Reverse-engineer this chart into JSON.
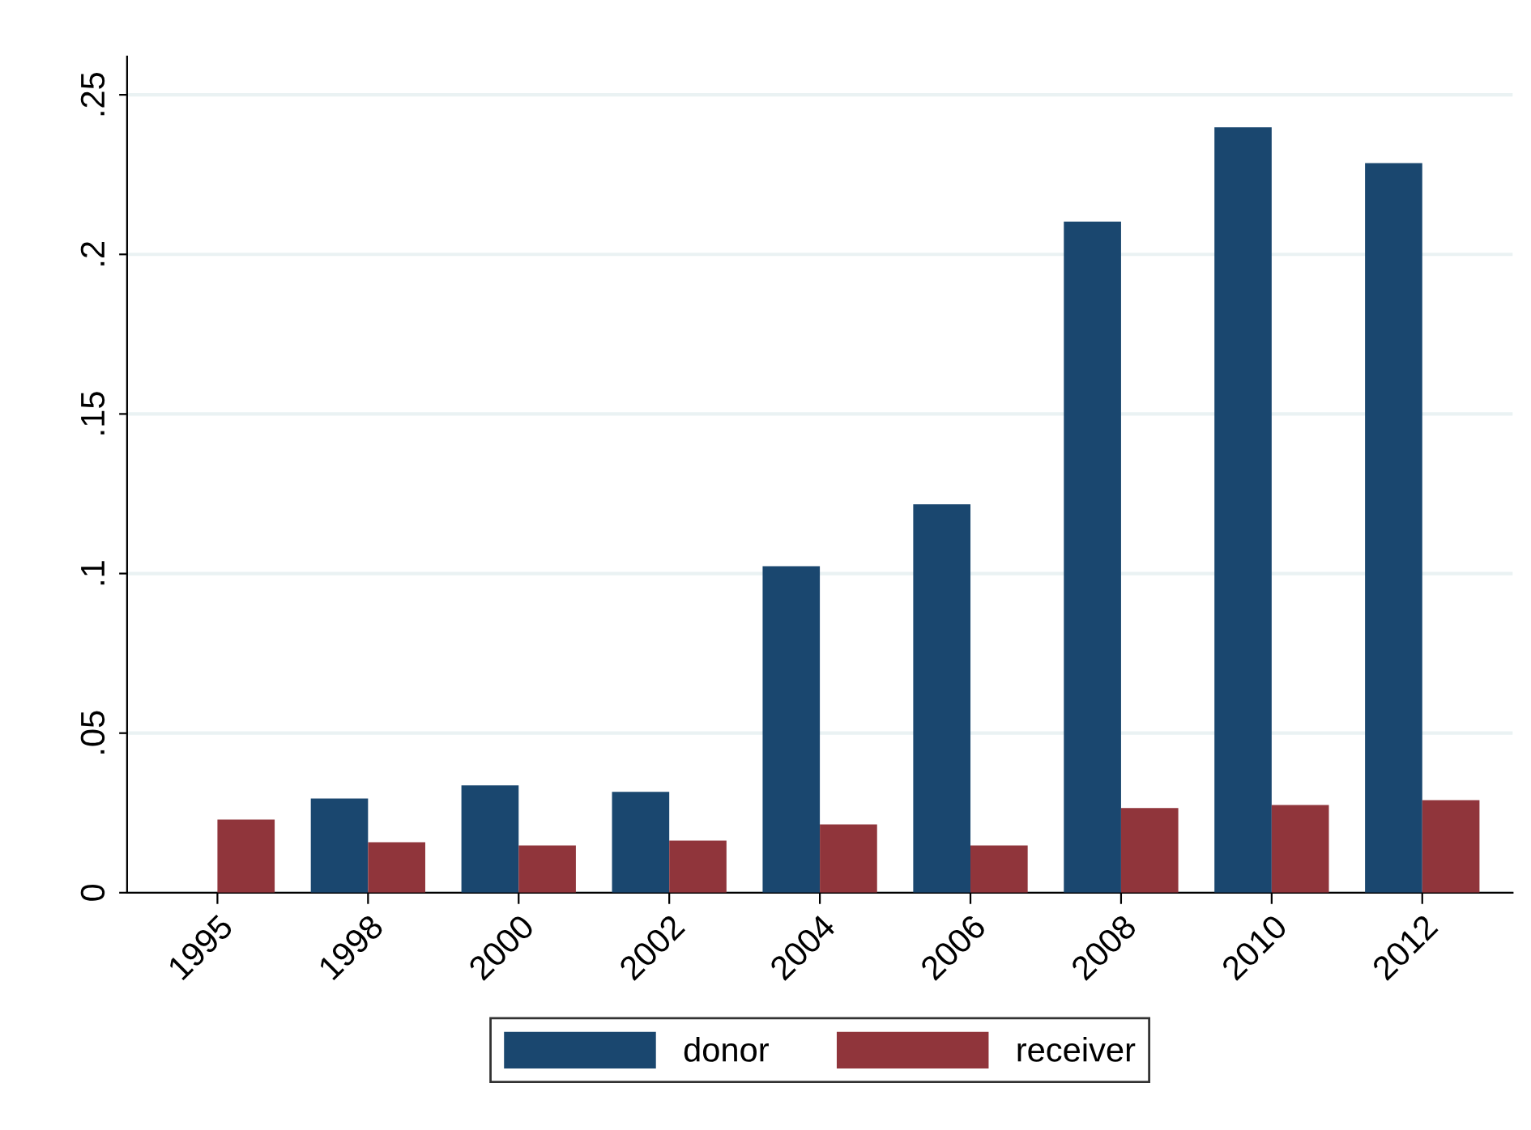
{
  "chart_data": {
    "type": "bar",
    "categories": [
      "1995",
      "1998",
      "2000",
      "2002",
      "2004",
      "2006",
      "2008",
      "2010",
      "2012"
    ],
    "series": [
      {
        "name": "donor",
        "color": "#1a476f",
        "values": [
          null,
          0.0295,
          0.0336,
          0.0316,
          0.1023,
          0.1217,
          0.2103,
          0.2398,
          0.2286
        ]
      },
      {
        "name": "receiver",
        "color": "#90353b",
        "values": [
          0.0229,
          0.0158,
          0.0148,
          0.0163,
          0.0214,
          0.0148,
          0.0265,
          0.0275,
          0.029
        ]
      }
    ],
    "ylim": [
      0,
      0.262
    ],
    "yticks": [
      {
        "value": 0,
        "label": "0"
      },
      {
        "value": 0.05,
        "label": ".05"
      },
      {
        "value": 0.1,
        "label": ".1"
      },
      {
        "value": 0.15,
        "label": ".15"
      },
      {
        "value": 0.2,
        "label": ".2"
      },
      {
        "value": 0.25,
        "label": ".25"
      }
    ],
    "grid": "y",
    "legend": "bottom"
  }
}
